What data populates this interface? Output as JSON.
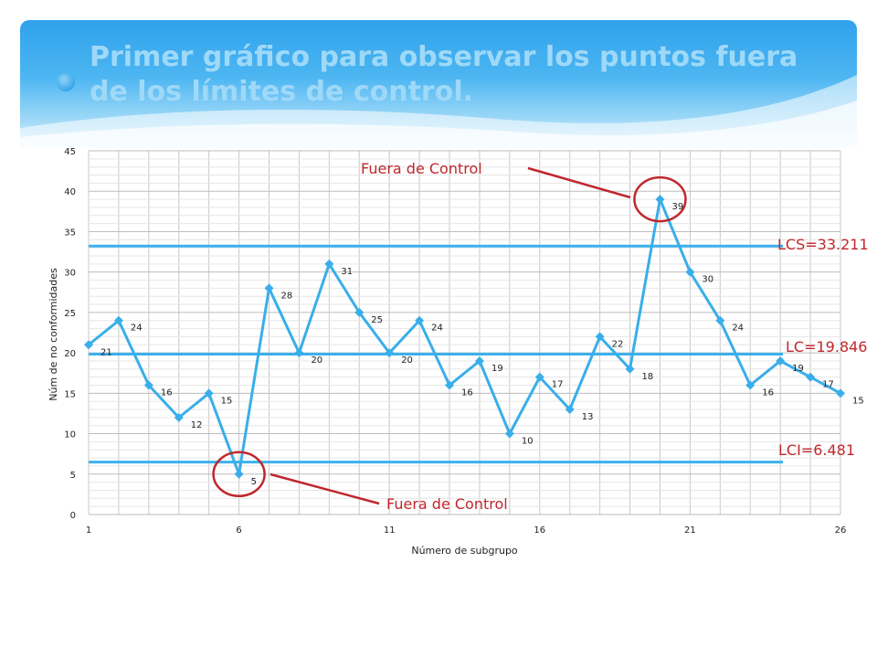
{
  "title": "Primer gráfico para observar los puntos fuera de los límites de control.",
  "colors": {
    "series": "#39aeea",
    "control_line": "#3bb0ec",
    "annotation": "#c0272d",
    "grid": "#c8c8c8"
  },
  "chart_data": {
    "type": "line",
    "xlabel": "Número de subgrupo",
    "ylabel": "Núm de no conformidades",
    "ylim": [
      0,
      45
    ],
    "yticks": [
      0,
      5,
      10,
      15,
      20,
      25,
      30,
      35,
      40,
      45
    ],
    "xlim": [
      1,
      26
    ],
    "xticks": [
      1,
      6,
      11,
      16,
      21,
      26
    ],
    "grid": true,
    "x": [
      1,
      2,
      3,
      4,
      5,
      6,
      7,
      8,
      9,
      10,
      11,
      12,
      13,
      14,
      15,
      16,
      17,
      18,
      19,
      20,
      21,
      22,
      23,
      24,
      25,
      26
    ],
    "values": [
      21,
      24,
      16,
      12,
      15,
      5,
      28,
      20,
      31,
      25,
      20,
      24,
      16,
      19,
      10,
      17,
      13,
      22,
      18,
      39,
      30,
      24,
      16,
      19,
      17,
      15
    ],
    "control_limits": [
      {
        "label": "LCS=33.211",
        "value": 33.211
      },
      {
        "label": "LC=19.846",
        "value": 19.846
      },
      {
        "label": "LCI=6.481",
        "value": 6.481
      }
    ],
    "annotations": [
      {
        "text": "Fuera de Control",
        "point_index": 19
      },
      {
        "text": "Fuera de Control",
        "point_index": 5
      }
    ]
  }
}
